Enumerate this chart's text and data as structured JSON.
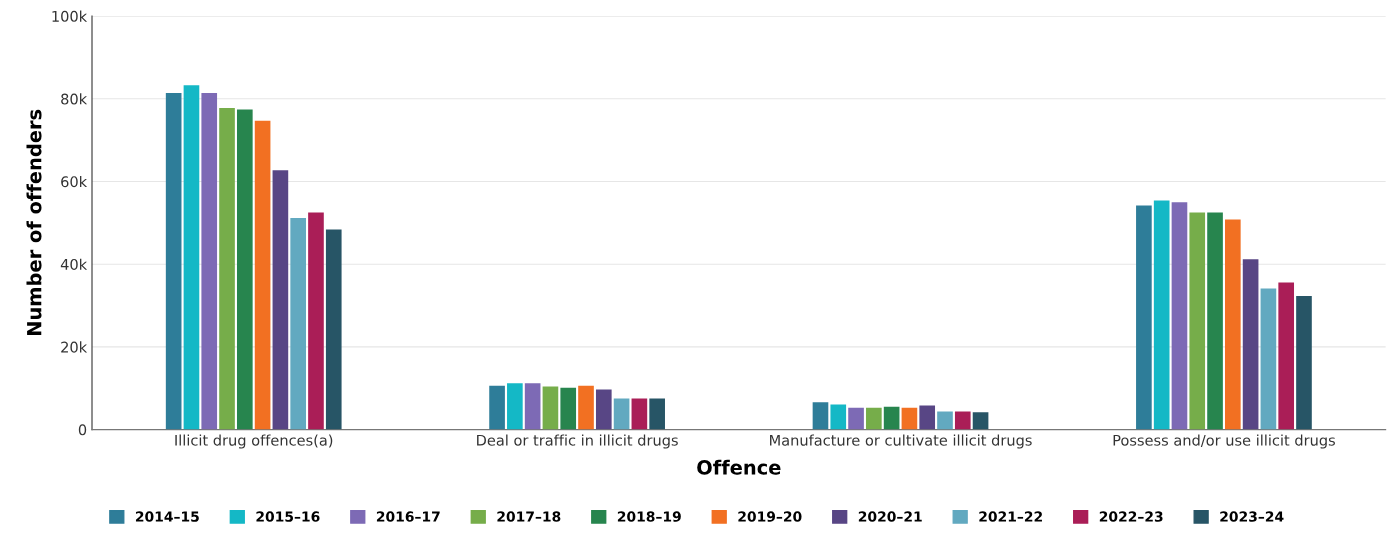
{
  "chart_data": {
    "type": "bar",
    "xlabel": "Offence",
    "ylabel": "Number of offenders",
    "categories": [
      "Illicit drug offences(a)",
      "Deal or traffic in illicit drugs",
      "Manufacture or cultivate illicit drugs",
      "Possess and/or use illicit drugs"
    ],
    "series": [
      {
        "name": "2014–15",
        "color": "#2e7d99",
        "values": [
          81400,
          10600,
          6600,
          54200
        ]
      },
      {
        "name": "2015–16",
        "color": "#14b8c6",
        "values": [
          83300,
          11200,
          6100,
          55400
        ]
      },
      {
        "name": "2016–17",
        "color": "#7d6ab5",
        "values": [
          81400,
          11200,
          5300,
          55000
        ]
      },
      {
        "name": "2017–18",
        "color": "#76ad4a",
        "values": [
          77800,
          10400,
          5300,
          52500
        ]
      },
      {
        "name": "2018–19",
        "color": "#27854e",
        "values": [
          77400,
          10100,
          5500,
          52500
        ]
      },
      {
        "name": "2019–20",
        "color": "#f27022",
        "values": [
          74700,
          10600,
          5300,
          50800
        ]
      },
      {
        "name": "2020–21",
        "color": "#584685",
        "values": [
          62700,
          9700,
          5800,
          41200
        ]
      },
      {
        "name": "2021–22",
        "color": "#62a9c0",
        "values": [
          51200,
          7500,
          4400,
          34100
        ]
      },
      {
        "name": "2022–23",
        "color": "#aa1e57",
        "values": [
          52500,
          7500,
          4400,
          35600
        ]
      },
      {
        "name": "2023–24",
        "color": "#275566",
        "values": [
          48400,
          7500,
          4200,
          32300
        ]
      }
    ],
    "ylim": [
      0,
      100000
    ],
    "yticks": [
      0,
      {
        "value": 20000,
        "label": "20k"
      },
      {
        "value": 40000,
        "label": "40k"
      },
      {
        "value": 60000,
        "label": "60k"
      },
      {
        "value": 80000,
        "label": "80k"
      },
      {
        "value": 100000,
        "label": "100k"
      }
    ],
    "grid": "y",
    "legend": "bottom"
  }
}
